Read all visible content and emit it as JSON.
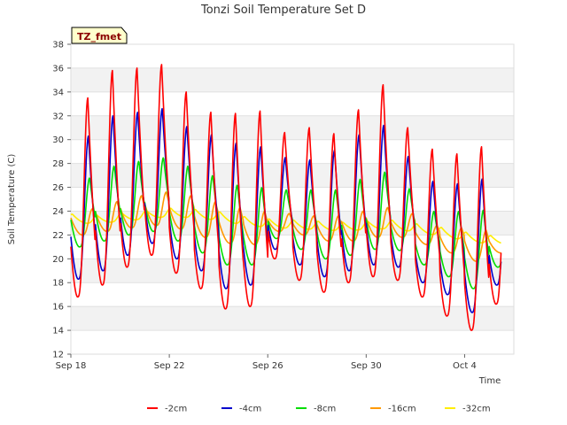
{
  "chart_data": {
    "type": "line",
    "title": "Tonzi Soil Temperature Set D",
    "xlabel": "Time",
    "ylabel": "Soil Temperature (C)",
    "site_tag": "TZ_fmet",
    "ylim": [
      12,
      38
    ],
    "xlim": [
      "2015-09-18",
      "2015-10-06"
    ],
    "x_ticks": [
      "Sep 18",
      "Sep 22",
      "Sep 26",
      "Sep 30",
      "Oct 4"
    ],
    "y_ticks": [
      12,
      14,
      16,
      18,
      20,
      22,
      24,
      26,
      28,
      30,
      32,
      34,
      36,
      38
    ],
    "grid": true,
    "legend_position": "bottom",
    "x_start": "Sep 18",
    "x_end": "Oct 5 12:00",
    "series": [
      {
        "name": "-2cm",
        "color": "#ff0000",
        "daily_min": [
          16.8,
          17.8,
          19.3,
          20.3,
          18.8,
          17.5,
          15.8,
          16.0,
          20.0,
          18.2,
          17.2,
          18.0,
          18.5,
          18.2,
          16.8,
          15.2,
          14.0,
          16.2
        ],
        "daily_max": [
          33.5,
          35.8,
          36.0,
          36.3,
          34.0,
          32.3,
          32.2,
          32.4,
          30.6,
          31.0,
          30.5,
          32.5,
          34.6,
          31.0,
          29.2,
          28.8,
          29.4,
          29.4
        ]
      },
      {
        "name": "-4cm",
        "color": "#0000cc",
        "daily_min": [
          18.3,
          19.0,
          20.3,
          21.3,
          20.0,
          19.0,
          17.5,
          17.8,
          20.8,
          19.5,
          18.5,
          19.0,
          19.5,
          19.3,
          18.0,
          17.0,
          15.5,
          17.8
        ],
        "daily_max": [
          30.3,
          32.0,
          32.3,
          32.6,
          31.1,
          30.4,
          29.7,
          29.4,
          28.5,
          28.3,
          29.1,
          30.4,
          31.2,
          28.6,
          26.5,
          26.3,
          26.7,
          26.2
        ]
      },
      {
        "name": "-8cm",
        "color": "#00dd00",
        "daily_min": [
          21.0,
          21.5,
          22.0,
          22.3,
          21.5,
          20.5,
          19.5,
          19.5,
          21.7,
          20.8,
          20.0,
          20.3,
          20.8,
          20.7,
          19.5,
          18.5,
          17.5,
          19.3
        ],
        "daily_max": [
          26.8,
          27.8,
          28.2,
          28.5,
          27.8,
          27.0,
          26.2,
          26.0,
          25.8,
          25.8,
          25.8,
          26.7,
          27.3,
          25.9,
          24.0,
          24.0,
          24.1,
          23.7
        ]
      },
      {
        "name": "-16cm",
        "color": "#ff9900",
        "daily_min": [
          22.0,
          22.3,
          22.6,
          22.8,
          22.5,
          21.8,
          21.3,
          21.2,
          22.3,
          22.0,
          21.5,
          21.5,
          21.8,
          21.8,
          21.2,
          20.5,
          19.8,
          20.5
        ],
        "daily_max": [
          24.2,
          24.8,
          25.3,
          25.6,
          25.3,
          24.8,
          24.3,
          24.0,
          23.8,
          23.6,
          23.6,
          24.0,
          24.3,
          23.8,
          22.8,
          22.6,
          22.4,
          22.0
        ]
      },
      {
        "name": "-32cm",
        "color": "#ffee00",
        "daily_mean": [
          23.4,
          23.3,
          23.5,
          23.7,
          23.9,
          23.8,
          23.6,
          23.2,
          23.0,
          22.9,
          22.8,
          22.7,
          22.8,
          22.9,
          22.6,
          22.3,
          21.9,
          21.6
        ],
        "daily_amplitude": 0.35
      }
    ]
  }
}
